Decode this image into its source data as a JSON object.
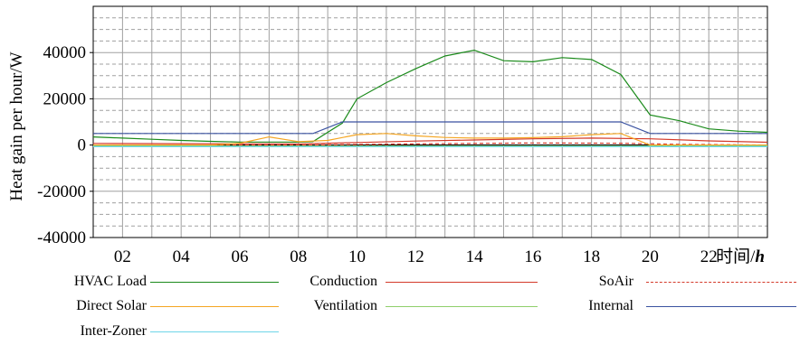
{
  "chart_data": {
    "type": "line",
    "title": "",
    "ylabel": "Heat gain per hour/W",
    "xlabel": "时间/h",
    "xlabel_text": "时间/",
    "xlabel_unit": "h",
    "ylim": [
      -40000,
      60000
    ],
    "xlim": [
      1,
      24
    ],
    "y_ticks": [
      -40000,
      -20000,
      0,
      20000,
      40000
    ],
    "y_tick_labels": [
      "-40000",
      "-20000",
      "0",
      "20000",
      "40000"
    ],
    "x_ticks": [
      2,
      4,
      6,
      8,
      10,
      12,
      14,
      16,
      18,
      20,
      22
    ],
    "x_tick_labels": [
      "02",
      "04",
      "06",
      "08",
      "10",
      "12",
      "14",
      "16",
      "18",
      "20",
      "22"
    ],
    "grid": true,
    "legend_position": "bottom",
    "series": [
      {
        "name": "HVAC Load",
        "color": "#1a8a1a",
        "dash": "solid",
        "x": [
          1,
          2,
          3,
          4,
          5,
          6,
          7,
          8,
          8.5,
          9.5,
          10,
          11,
          12,
          13,
          14,
          15,
          16,
          17,
          18,
          19,
          20,
          21,
          22,
          23,
          24
        ],
        "y": [
          3500,
          3000,
          2500,
          2000,
          1600,
          1300,
          1300,
          1300,
          1500,
          9500,
          20000,
          27000,
          33000,
          38500,
          41000,
          36500,
          36000,
          37800,
          37000,
          30500,
          13000,
          10500,
          7000,
          6000,
          5500
        ]
      },
      {
        "name": "Conduction",
        "color": "#d43a2a",
        "dash": "solid",
        "x": [
          1,
          4,
          8,
          10,
          12,
          14,
          16,
          18,
          20,
          22,
          24
        ],
        "y": [
          700,
          600,
          500,
          1100,
          1700,
          2200,
          2700,
          3000,
          2700,
          1800,
          1200
        ]
      },
      {
        "name": "SoAir",
        "color": "#d43a2a",
        "dash": "4 3",
        "x": [
          1,
          8,
          12,
          16,
          19,
          21,
          24
        ],
        "y": [
          0,
          0,
          500,
          900,
          800,
          300,
          0
        ]
      },
      {
        "name": "Direct Solar",
        "color": "#f5a623",
        "dash": "solid",
        "x": [
          1,
          5,
          6,
          7,
          8,
          9,
          10,
          11,
          12,
          13,
          14,
          15,
          16,
          17,
          18,
          19,
          20,
          24
        ],
        "y": [
          0,
          0,
          800,
          3500,
          1500,
          2000,
          4500,
          5000,
          4000,
          3300,
          3000,
          3000,
          3200,
          3600,
          4500,
          5000,
          0,
          0
        ]
      },
      {
        "name": "Ventilation",
        "color": "#8fcf6a",
        "dash": "solid",
        "x": [
          1,
          24
        ],
        "y": [
          -400,
          -400
        ]
      },
      {
        "name": "Internal",
        "color": "#3a52a0",
        "dash": "solid",
        "x": [
          1,
          8.5,
          9.5,
          19,
          20,
          24
        ],
        "y": [
          5000,
          5000,
          10000,
          10000,
          5000,
          5000
        ]
      },
      {
        "name": "Inter-Zoner",
        "color": "#6fd6e8",
        "dash": "solid",
        "x": [
          1,
          24
        ],
        "y": [
          -700,
          -700
        ]
      }
    ]
  }
}
